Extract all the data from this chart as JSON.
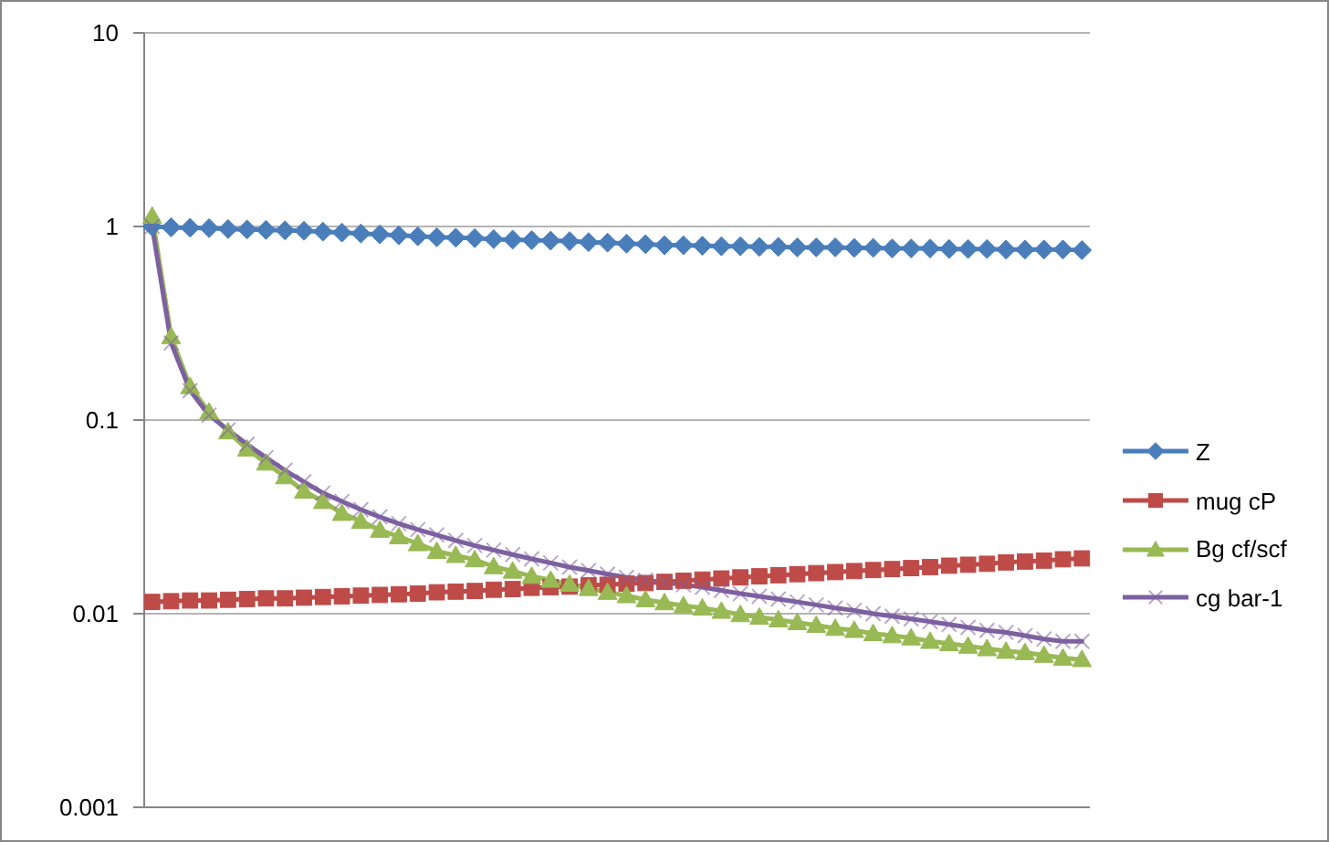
{
  "chart_data": {
    "type": "line",
    "log": true,
    "grid": "y",
    "legend": "right",
    "line_style": "solid",
    "categories": [
      null,
      null,
      null,
      null,
      null,
      null,
      null,
      null,
      null,
      null,
      null,
      null,
      null,
      null,
      null,
      null,
      null,
      null,
      null,
      null,
      null,
      null,
      null,
      null,
      null,
      null,
      null,
      null,
      null,
      null,
      null,
      null,
      null,
      null,
      null,
      null,
      null,
      null,
      null,
      null,
      null,
      null,
      null,
      null,
      null,
      null,
      null,
      null,
      null,
      null
    ],
    "ylim": [
      0.001,
      10
    ],
    "yticks": [
      0.001,
      0.01,
      0.1,
      1,
      10
    ],
    "series": [
      {
        "name": "Z",
        "color": "#4a7ebb",
        "marker": "diamond",
        "values": [
          1.0,
          0.99,
          0.985,
          0.98,
          0.97,
          0.965,
          0.96,
          0.955,
          0.95,
          0.94,
          0.93,
          0.92,
          0.91,
          0.9,
          0.89,
          0.88,
          0.875,
          0.87,
          0.86,
          0.855,
          0.85,
          0.845,
          0.84,
          0.83,
          0.825,
          0.815,
          0.81,
          0.8,
          0.8,
          0.795,
          0.79,
          0.79,
          0.785,
          0.785,
          0.78,
          0.78,
          0.78,
          0.775,
          0.775,
          0.77,
          0.77,
          0.77,
          0.765,
          0.765,
          0.765,
          0.76,
          0.76,
          0.76,
          0.76,
          0.755
        ]
      },
      {
        "name": "mug cP",
        "color": "#be4b48",
        "marker": "square",
        "values": [
          0.0115,
          0.0116,
          0.0117,
          0.0117,
          0.0118,
          0.0119,
          0.012,
          0.012,
          0.0121,
          0.0122,
          0.0123,
          0.0124,
          0.0125,
          0.0126,
          0.0127,
          0.0129,
          0.013,
          0.0131,
          0.0133,
          0.0134,
          0.0136,
          0.0137,
          0.0138,
          0.014,
          0.0141,
          0.0143,
          0.0144,
          0.0146,
          0.0148,
          0.015,
          0.0152,
          0.0154,
          0.0156,
          0.0158,
          0.016,
          0.0162,
          0.0164,
          0.0166,
          0.0168,
          0.017,
          0.0172,
          0.0174,
          0.0177,
          0.0179,
          0.0181,
          0.0184,
          0.0186,
          0.0188,
          0.0191,
          0.0193
        ]
      },
      {
        "name": "Bg cf/scf",
        "color": "#98b954",
        "marker": "triangle",
        "values": [
          1.13,
          0.27,
          0.149,
          0.11,
          0.087,
          0.071,
          0.06,
          0.051,
          0.043,
          0.038,
          0.033,
          0.03,
          0.027,
          0.025,
          0.023,
          0.021,
          0.02,
          0.019,
          0.0175,
          0.0166,
          0.0156,
          0.0149,
          0.0142,
          0.0135,
          0.0129,
          0.0124,
          0.0118,
          0.0114,
          0.011,
          0.0107,
          0.0103,
          0.0099,
          0.0096,
          0.0093,
          0.009,
          0.0087,
          0.0084,
          0.0082,
          0.0079,
          0.0077,
          0.0075,
          0.0072,
          0.007,
          0.0068,
          0.0066,
          0.0064,
          0.0063,
          0.0061,
          0.0059,
          0.0058
        ]
      },
      {
        "name": "cg bar-1",
        "color": "#7d60a0",
        "marker": "cross",
        "values": [
          1.0,
          0.25,
          0.142,
          0.106,
          0.089,
          0.075,
          0.064,
          0.055,
          0.048,
          0.042,
          0.038,
          0.0345,
          0.0316,
          0.0292,
          0.0272,
          0.0255,
          0.0239,
          0.0225,
          0.0213,
          0.0202,
          0.0192,
          0.0183,
          0.0174,
          0.0167,
          0.016,
          0.0154,
          0.0149,
          0.0145,
          0.0141,
          0.0137,
          0.0132,
          0.0127,
          0.0123,
          0.0119,
          0.0115,
          0.0111,
          0.0107,
          0.0104,
          0.01,
          0.0097,
          0.0094,
          0.0091,
          0.0088,
          0.0085,
          0.0082,
          0.008,
          0.0077,
          0.0074,
          0.0072,
          0.0072
        ]
      }
    ]
  }
}
